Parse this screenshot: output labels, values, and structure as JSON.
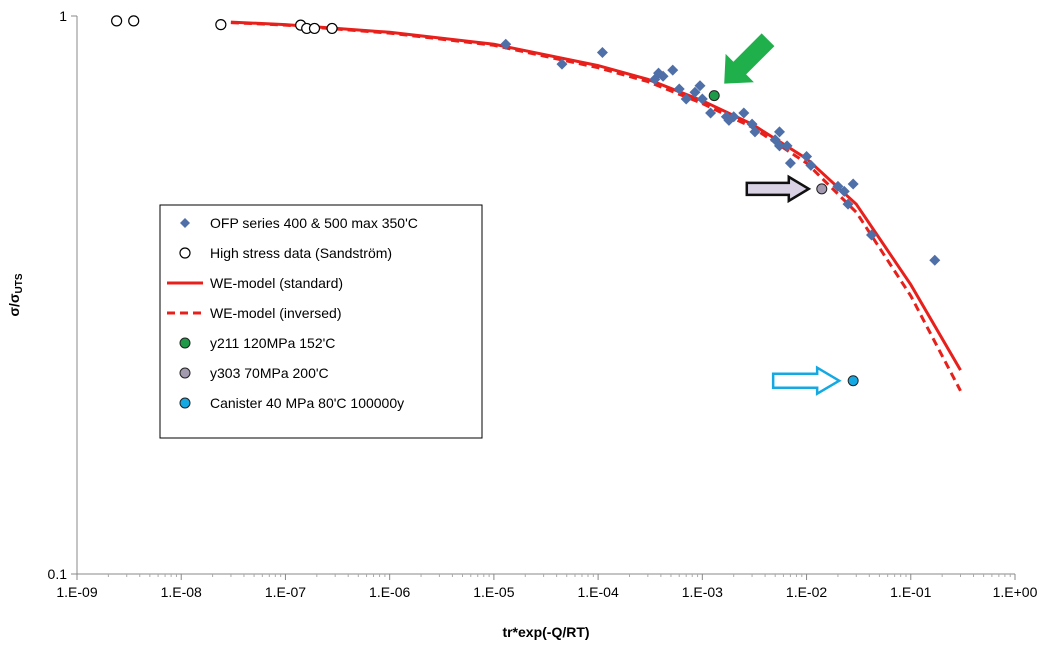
{
  "chart_data": {
    "type": "scatter",
    "xscale": "log",
    "yscale": "log",
    "xlim": [
      1e-09,
      1
    ],
    "ylim": [
      0.1,
      1
    ],
    "x_tick_labels": [
      "1.E-09",
      "1.E-08",
      "1.E-07",
      "1.E-06",
      "1.E-05",
      "1.E-04",
      "1.E-03",
      "1.E-02",
      "1.E-01",
      "1.E+00"
    ],
    "y_tick_labels": [
      "0.1",
      "1"
    ],
    "xlabel": "tr*exp(-Q/RT)",
    "ylabel_main": "σ/σ",
    "ylabel_sub": "UTS",
    "grid": false,
    "legend_position": "center-left",
    "series": [
      {
        "name": "OFP series 400 & 500 max 350'C",
        "marker": "diamond",
        "color": "#4f6fa8",
        "points": [
          [
            1.3e-05,
            0.89
          ],
          [
            4.5e-05,
            0.82
          ],
          [
            0.00011,
            0.86
          ],
          [
            0.00035,
            0.77
          ],
          [
            0.00038,
            0.79
          ],
          [
            0.00042,
            0.78
          ],
          [
            0.00052,
            0.8
          ],
          [
            0.0006,
            0.74
          ],
          [
            0.0007,
            0.71
          ],
          [
            0.00085,
            0.73
          ],
          [
            0.00095,
            0.75
          ],
          [
            0.001,
            0.71
          ],
          [
            0.0012,
            0.67
          ],
          [
            0.0017,
            0.66
          ],
          [
            0.0018,
            0.65
          ],
          [
            0.002,
            0.66
          ],
          [
            0.0025,
            0.67
          ],
          [
            0.003,
            0.64
          ],
          [
            0.0032,
            0.62
          ],
          [
            0.005,
            0.6
          ],
          [
            0.0055,
            0.62
          ],
          [
            0.0055,
            0.585
          ],
          [
            0.0065,
            0.585
          ],
          [
            0.007,
            0.545
          ],
          [
            0.01,
            0.56
          ],
          [
            0.011,
            0.54
          ],
          [
            0.02,
            0.495
          ],
          [
            0.023,
            0.485
          ],
          [
            0.025,
            0.46
          ],
          [
            0.028,
            0.5
          ],
          [
            0.042,
            0.405
          ],
          [
            0.17,
            0.365
          ]
        ]
      },
      {
        "name": "High stress data (Sandström)",
        "marker": "open-circle",
        "color": "#000000",
        "points": [
          [
            2.4e-09,
            0.98
          ],
          [
            3.5e-09,
            0.98
          ],
          [
            2.4e-08,
            0.965
          ],
          [
            1.4e-07,
            0.963
          ],
          [
            1.6e-07,
            0.95
          ],
          [
            1.9e-07,
            0.95
          ],
          [
            2.8e-07,
            0.95
          ]
        ]
      },
      {
        "name": "WE-model (standard)",
        "line": "solid",
        "color": "#e8201c",
        "points": [
          [
            3e-08,
            0.975
          ],
          [
            1e-07,
            0.965
          ],
          [
            1e-06,
            0.935
          ],
          [
            1e-05,
            0.89
          ],
          [
            0.0001,
            0.815
          ],
          [
            0.0003,
            0.77
          ],
          [
            0.001,
            0.705
          ],
          [
            0.003,
            0.64
          ],
          [
            0.01,
            0.555
          ],
          [
            0.03,
            0.46
          ],
          [
            0.1,
            0.33
          ],
          [
            0.3,
            0.232
          ]
        ]
      },
      {
        "name": "WE-model (inversed)",
        "line": "dashed",
        "color": "#e8201c",
        "points": [
          [
            3e-08,
            0.973
          ],
          [
            1e-07,
            0.963
          ],
          [
            1e-06,
            0.932
          ],
          [
            1e-05,
            0.886
          ],
          [
            0.0001,
            0.808
          ],
          [
            0.0003,
            0.763
          ],
          [
            0.001,
            0.697
          ],
          [
            0.003,
            0.632
          ],
          [
            0.01,
            0.545
          ],
          [
            0.03,
            0.445
          ],
          [
            0.1,
            0.315
          ],
          [
            0.3,
            0.213
          ]
        ]
      },
      {
        "name": "y211 120MPa 152'C",
        "marker": "filled-circle",
        "color": "#1e9a48",
        "points": [
          [
            0.0013,
            0.72
          ]
        ]
      },
      {
        "name": "y303 70MPa 200'C",
        "marker": "filled-circle",
        "color": "#a49ab0",
        "points": [
          [
            0.014,
            0.49
          ]
        ]
      },
      {
        "name": "Canister 40 MPa 80'C 100000y",
        "marker": "filled-circle",
        "color": "#14a9e3",
        "points": [
          [
            0.028,
            0.222
          ]
        ]
      }
    ],
    "annotations": [
      {
        "type": "arrow",
        "color": "#1fb04c",
        "style": "filled-diagonal",
        "target": "y211 120MPa 152'C"
      },
      {
        "type": "arrow",
        "color": "#d8d2e4",
        "style": "outlined-right",
        "target": "y303 70MPa 200'C"
      },
      {
        "type": "arrow",
        "color": "#ffffff",
        "style": "outlined-right-blue",
        "target": "Canister 40 MPa 80'C 100000y"
      }
    ]
  }
}
